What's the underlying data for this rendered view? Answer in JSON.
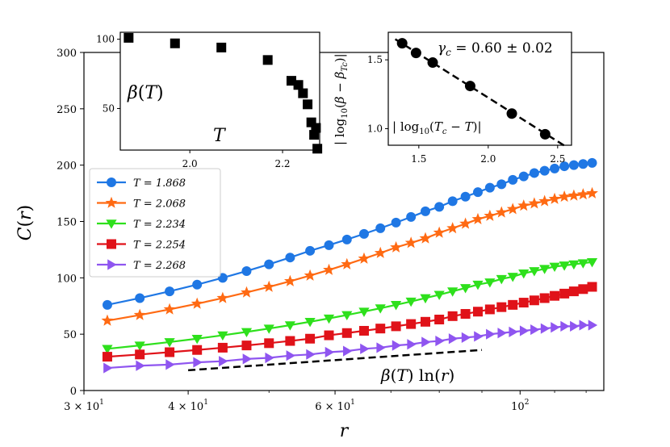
{
  "chart_data": [
    {
      "type": "line",
      "xscale": "log",
      "xlabel": "r",
      "ylabel": "C(r)",
      "xlim": [
        30,
        126
      ],
      "ylim": [
        0,
        300
      ],
      "xticks": [
        {
          "value": 30,
          "label": "3 × 10",
          "exp": "1"
        },
        {
          "value": 40,
          "label": "4 × 10",
          "exp": "1"
        },
        {
          "value": 60,
          "label": "6 × 10",
          "exp": "1"
        },
        {
          "value": 100,
          "label": "10",
          "exp": "2"
        }
      ],
      "yticks": [
        0,
        50,
        100,
        150,
        200,
        250,
        300
      ],
      "legend_position": "upper-left",
      "series": [
        {
          "name": "T = 1.868",
          "color": "#1f77e4",
          "marker": "circle",
          "x": [
            32,
            35,
            38,
            41,
            44,
            47,
            50,
            53,
            56,
            59,
            62,
            65,
            68,
            71,
            74,
            77,
            80,
            83,
            86,
            89,
            92,
            95,
            98,
            101,
            104,
            107,
            110,
            113,
            116,
            119,
            122
          ],
          "y": [
            76,
            82,
            88,
            94,
            100,
            106,
            112,
            118,
            124,
            129,
            134,
            139,
            144,
            149,
            154,
            159,
            163,
            168,
            172,
            176,
            180,
            183,
            187,
            190,
            193,
            195,
            197,
            199,
            200,
            201,
            202
          ]
        },
        {
          "name": "T = 2.068",
          "color": "#ff6a13",
          "marker": "star",
          "x": [
            32,
            35,
            38,
            41,
            44,
            47,
            50,
            53,
            56,
            59,
            62,
            65,
            68,
            71,
            74,
            77,
            80,
            83,
            86,
            89,
            92,
            95,
            98,
            101,
            104,
            107,
            110,
            113,
            116,
            119,
            122
          ],
          "y": [
            62,
            67,
            72,
            77,
            82,
            87,
            92,
            97,
            102,
            107,
            112,
            117,
            122,
            127,
            131,
            135,
            140,
            144,
            148,
            152,
            155,
            158,
            161,
            164,
            166,
            168,
            170,
            172,
            173,
            174,
            175
          ]
        },
        {
          "name": "T = 2.234",
          "color": "#2ee01c",
          "marker": "triangle-down",
          "x": [
            32,
            35,
            38,
            41,
            44,
            47,
            50,
            53,
            56,
            59,
            62,
            65,
            68,
            71,
            74,
            77,
            80,
            83,
            86,
            89,
            92,
            95,
            98,
            101,
            104,
            107,
            110,
            113,
            116,
            119,
            122
          ],
          "y": [
            37,
            40,
            43,
            46,
            49,
            52,
            55,
            58,
            61,
            64,
            67,
            70,
            73,
            76,
            79,
            82,
            85,
            88,
            91,
            94,
            96,
            99,
            101,
            104,
            106,
            108,
            110,
            111,
            112,
            113,
            114
          ]
        },
        {
          "name": "T = 2.254",
          "color": "#e01219",
          "marker": "square",
          "x": [
            32,
            35,
            38,
            41,
            44,
            47,
            50,
            53,
            56,
            59,
            62,
            65,
            68,
            71,
            74,
            77,
            80,
            83,
            86,
            89,
            92,
            95,
            98,
            101,
            104,
            107,
            110,
            113,
            116,
            119,
            122
          ],
          "y": [
            30,
            32,
            34,
            36,
            38,
            40,
            42,
            44,
            46,
            49,
            51,
            53,
            55,
            57,
            59,
            61,
            63,
            66,
            68,
            70,
            72,
            74,
            76,
            78,
            80,
            82,
            84,
            86,
            88,
            90,
            92
          ]
        },
        {
          "name": "T = 2.268",
          "color": "#8f55f0",
          "marker": "triangle-right",
          "x": [
            32,
            35,
            38,
            41,
            44,
            47,
            50,
            53,
            56,
            59,
            62,
            65,
            68,
            71,
            74,
            77,
            80,
            83,
            86,
            89,
            92,
            95,
            98,
            101,
            104,
            107,
            110,
            113,
            116,
            119,
            122
          ],
          "y": [
            20,
            22,
            23,
            25,
            26,
            28,
            29,
            31,
            32,
            34,
            35,
            37,
            38,
            40,
            41,
            43,
            44,
            46,
            47,
            48,
            50,
            51,
            52,
            53,
            54,
            55,
            56,
            57,
            57,
            58,
            58
          ]
        }
      ],
      "reference_line": {
        "label": "β(T) ln(r)",
        "x": [
          40,
          90
        ],
        "y": [
          18,
          36
        ]
      }
    },
    {
      "type": "scatter",
      "ylabel": "β(T)",
      "xlabel": "T",
      "xlim": [
        1.85,
        2.28
      ],
      "ylim": [
        20,
        105
      ],
      "xticks": [
        2.0,
        2.2
      ],
      "yticks": [
        50,
        100
      ],
      "x": [
        1.868,
        1.968,
        2.068,
        2.168,
        2.219,
        2.234,
        2.244,
        2.254,
        2.262,
        2.268
      ],
      "y": [
        101,
        97,
        94,
        85,
        70,
        67,
        61,
        53,
        40,
        31
      ],
      "series_extra": {
        "x": [
          2.272,
          2.275
        ],
        "y": [
          36,
          21
        ]
      }
    },
    {
      "type": "scatter",
      "xlabel": "|log10(Tc − T)|",
      "ylabel": "|log10(β − βTc)|",
      "annotation": "γc = 0.60 ± 0.02",
      "xlim": [
        1.28,
        2.6
      ],
      "ylim": [
        0.88,
        1.7
      ],
      "xticks": [
        1.5,
        2.0,
        2.5
      ],
      "yticks": [
        1.0,
        1.5
      ],
      "x": [
        1.38,
        1.48,
        1.6,
        1.87,
        2.17,
        2.41
      ],
      "y": [
        1.62,
        1.55,
        1.48,
        1.31,
        1.11,
        0.96
      ],
      "fit_line": {
        "x": [
          1.33,
          2.56
        ],
        "y": [
          1.65,
          0.87
        ]
      }
    }
  ]
}
